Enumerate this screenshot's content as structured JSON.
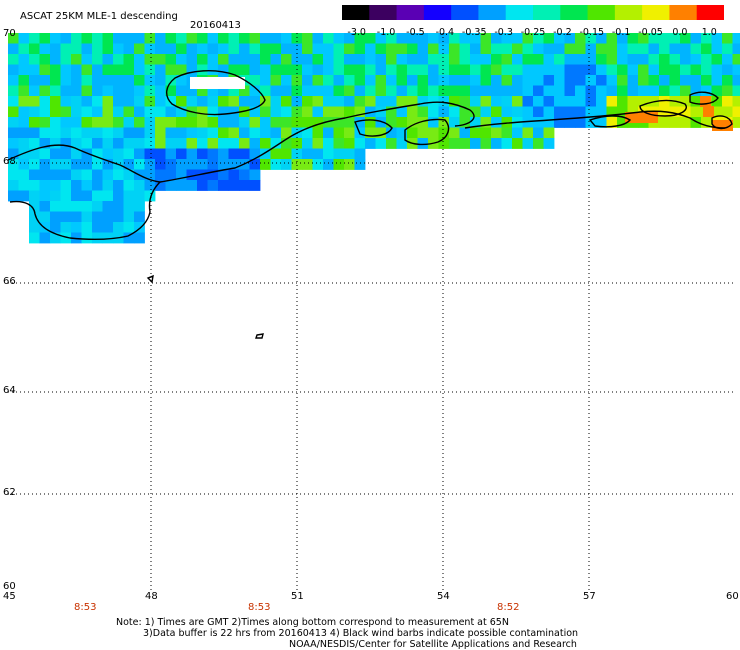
{
  "header": {
    "title": "ASCAT 25KM MLE-1 descending",
    "date": "20160413"
  },
  "colorbar": {
    "labels": [
      "-3.0",
      "-1.0",
      "-0.5",
      "-0.4",
      "-0.35",
      "-0.3",
      "-0.25",
      "-0.2",
      "-0.15",
      "-0.1",
      "-0.05",
      "0.0",
      "1.0"
    ],
    "colors": [
      "#000000",
      "#3c0060",
      "#5a00b4",
      "#1400ff",
      "#0050ff",
      "#00a0ff",
      "#00e6f0",
      "#00f0b4",
      "#00e650",
      "#50e600",
      "#b4f000",
      "#f0f000",
      "#ff8000",
      "#ff0000"
    ]
  },
  "axes": {
    "lat_labels": [
      "70",
      "68",
      "66",
      "64",
      "62",
      "60"
    ],
    "lon_labels": [
      "45",
      "48",
      "51",
      "54",
      "57",
      "60"
    ]
  },
  "times": [
    "8:53",
    "8:53",
    "8:52"
  ],
  "notes": {
    "line1": "Note: 1) Times are GMT 2)Times along bottom correspond to measurement at 65N",
    "line2": "3)Data buffer is 22 hrs from 20160413 4) Black wind barbs indicate possible contamination",
    "line3": "NOAA/NESDIS/Center for Satellite Applications and Research"
  },
  "map": {
    "lat_range": [
      60,
      70
    ],
    "lon_range": [
      45,
      60
    ],
    "gridlines": true
  }
}
